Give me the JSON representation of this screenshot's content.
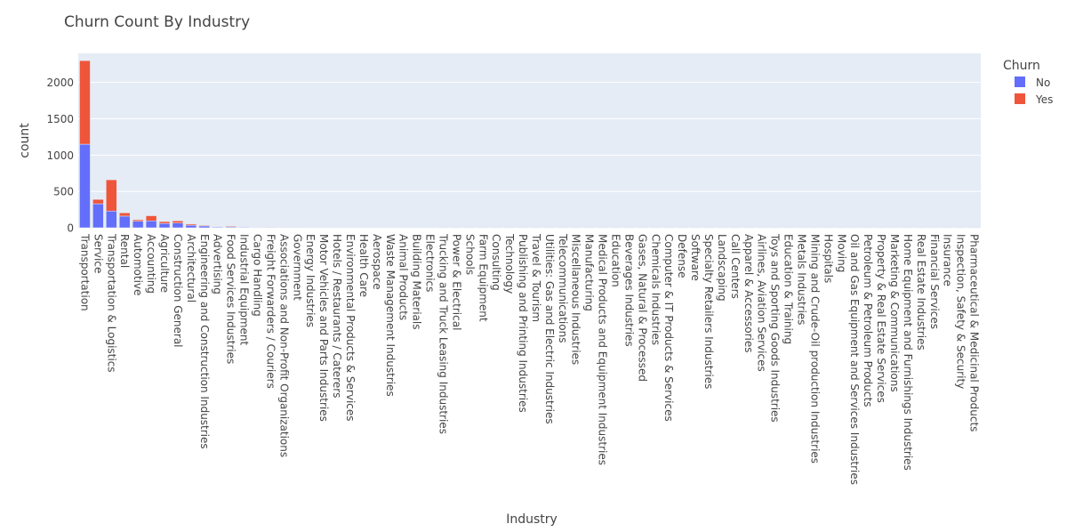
{
  "chart_data": {
    "type": "bar",
    "barmode": "stack",
    "title": "Churn Count By Industry",
    "xlabel": "Industry",
    "ylabel": "count",
    "ylim": [
      0,
      2400
    ],
    "yticks": [
      0,
      500,
      1000,
      1500,
      2000
    ],
    "grid": true,
    "legend_title": "Churn",
    "legend_position": "top-right",
    "categories": [
      "Transportation",
      "Service",
      "Transportation & Logistics",
      "Rental",
      "Automotive",
      "Accounting",
      "Agriculture",
      "Construction General",
      "Architectural",
      "Engineering and Construction Industries",
      "Advertising",
      "Food Services Industries",
      "Industrial Equipment",
      "Cargo Handling",
      "Freight Forwarders / Couriers",
      "Associations and Non-Profit Organizations",
      "Government",
      "Energy Industries",
      "Motor Vehicles and Parts Industries",
      "Hotels / Restaurants / Caterers",
      "Environmental Products & Services",
      "Health Care",
      "Aerospace",
      "Waste Management Industries",
      "Animal Products",
      "Building Materials",
      "Electronics",
      "Trucking and Truck Leasing Industries",
      "Power & Electrical",
      "Schools",
      "Farm Equipment",
      "Consulting",
      "Technology",
      "Publishing and Printing Industries",
      "Travel & Tourism",
      "Utilities: Gas and Electric Industries",
      "Telecommunications",
      "Miscellaneous Industries",
      "Manufacturing",
      "Medical Products and Equipment Industries",
      "Education",
      "Beverages Industries",
      "Gases, Natural & Processed",
      "Chemicals Industries",
      "Computer & IT Products & Services",
      "Defense",
      "Software",
      "Specialty Retailers Industries",
      "Landscaping",
      "Call Centers",
      "Apparel & Accessories",
      "Airlines, Aviation Services",
      "Toys and Sporting Goods Industries",
      "Education & Training",
      "Metals Industries",
      "Mining and Crude-Oil production Industries",
      "Hospitals",
      "Moving",
      "Oil and Gas Equipment and Services Industries",
      "Petroleum & Petroleum Products",
      "Property & Real Estate Services",
      "Marketing & Communications",
      "Home Equipment and Furnishings Industries",
      "Real Estate Industries",
      "Financial Services",
      "Insurance",
      "Inspection, Safety & Security",
      "Pharmaceutical & Medicinal Products"
    ],
    "series": [
      {
        "name": "No",
        "color": "#636efa",
        "values": [
          1150,
          330,
          230,
          160,
          90,
          95,
          60,
          65,
          35,
          25,
          10,
          12,
          8,
          6,
          5,
          4,
          4,
          3,
          3,
          3,
          2,
          2,
          2,
          2,
          2,
          2,
          2,
          1,
          1,
          1,
          1,
          1,
          1,
          1,
          1,
          1,
          1,
          1,
          1,
          1,
          1,
          1,
          1,
          1,
          1,
          1,
          1,
          1,
          1,
          1,
          1,
          1,
          1,
          1,
          1,
          1,
          1,
          1,
          1,
          1,
          1,
          1,
          1,
          1,
          1,
          1,
          1,
          1
        ]
      },
      {
        "name": "Yes",
        "color": "#ef553b",
        "values": [
          1150,
          60,
          430,
          45,
          20,
          70,
          25,
          30,
          15,
          10,
          5,
          10,
          4,
          3,
          3,
          2,
          2,
          2,
          2,
          1,
          1,
          1,
          1,
          1,
          1,
          1,
          1,
          1,
          1,
          1,
          1,
          1,
          1,
          1,
          1,
          1,
          1,
          1,
          1,
          1,
          1,
          1,
          1,
          1,
          1,
          1,
          1,
          1,
          1,
          1,
          1,
          1,
          1,
          1,
          1,
          1,
          1,
          1,
          1,
          1,
          1,
          1,
          1,
          1,
          1,
          1,
          1,
          1
        ]
      }
    ]
  }
}
